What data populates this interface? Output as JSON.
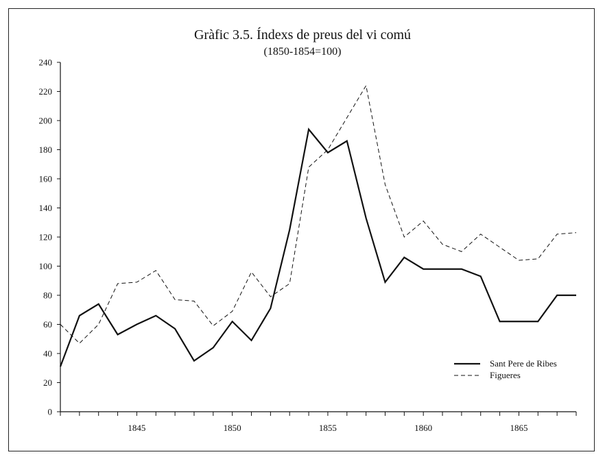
{
  "chart_data": {
    "type": "line",
    "title": "Gràfic 3.5. Índexs de preus del vi comú",
    "subtitle": "(1850-1854=100)",
    "xlabel": "",
    "ylabel": "",
    "xlim": [
      1841,
      1868
    ],
    "ylim": [
      0,
      240
    ],
    "y_ticks": [
      0,
      20,
      40,
      60,
      80,
      100,
      120,
      140,
      160,
      180,
      200,
      220,
      240
    ],
    "x_tick_labels": [
      1845,
      1850,
      1855,
      1860,
      1865
    ],
    "grid": false,
    "legend_position": "bottom-right",
    "x": [
      1841,
      1842,
      1843,
      1844,
      1845,
      1846,
      1847,
      1848,
      1849,
      1850,
      1851,
      1852,
      1853,
      1854,
      1855,
      1856,
      1857,
      1858,
      1859,
      1860,
      1861,
      1862,
      1863,
      1864,
      1865,
      1866,
      1867,
      1868
    ],
    "series": [
      {
        "name": "Sant Pere de Ribes",
        "style": "solid",
        "color": "#111111",
        "values": [
          31,
          66,
          74,
          53,
          60,
          66,
          57,
          35,
          44,
          62,
          49,
          71,
          125,
          194,
          178,
          186,
          133,
          89,
          106,
          98,
          98,
          98,
          93,
          62,
          62,
          62,
          80,
          80
        ]
      },
      {
        "name": "Figueres",
        "style": "dashed",
        "color": "#111111",
        "values": [
          60,
          47,
          60,
          88,
          89,
          97,
          77,
          76,
          59,
          69,
          96,
          79,
          88,
          168,
          180,
          202,
          224,
          156,
          120,
          131,
          115,
          110,
          122,
          113,
          104,
          105,
          122,
          123
        ]
      }
    ]
  }
}
